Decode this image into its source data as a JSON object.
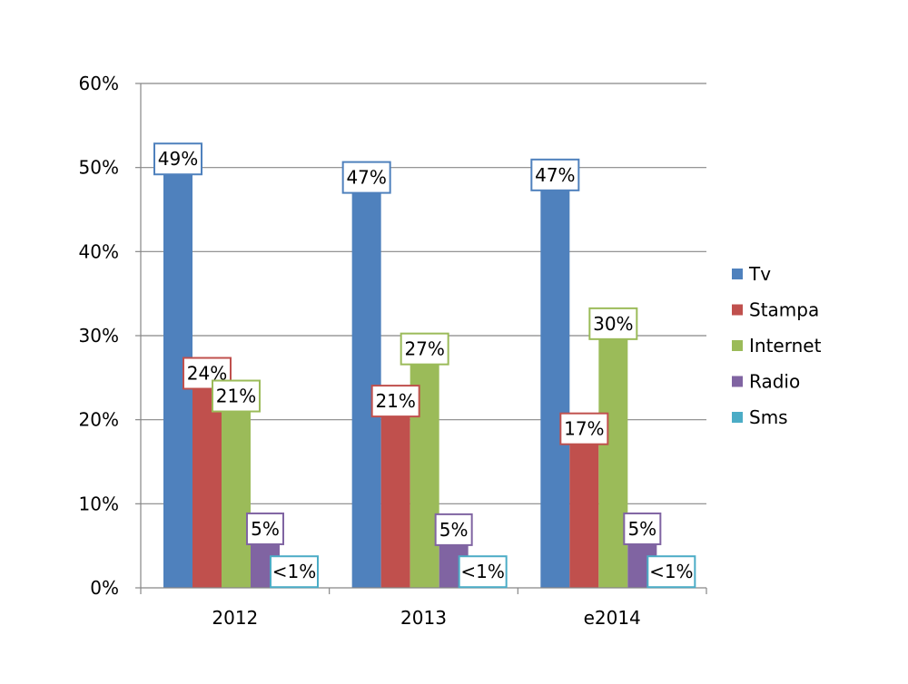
{
  "chart_data": {
    "type": "bar",
    "categories": [
      "2012",
      "2013",
      "e2014"
    ],
    "ylim": [
      0,
      60
    ],
    "ytick_labels": [
      "0%",
      "10%",
      "20%",
      "30%",
      "40%",
      "50%",
      "60%"
    ],
    "grid": true,
    "legend_position": "right",
    "series": [
      {
        "name": "Tv",
        "color": "#4F81BD",
        "values": [
          49.4,
          47.2,
          47.5
        ],
        "labels": [
          "49%",
          "47%",
          "47%"
        ]
      },
      {
        "name": "Stampa",
        "color": "#C0504D",
        "values": [
          23.9,
          20.6,
          17.3
        ],
        "labels": [
          "24%",
          "21%",
          "17%"
        ]
      },
      {
        "name": "Internet",
        "color": "#9BBB59",
        "values": [
          21.2,
          26.8,
          29.8
        ],
        "labels": [
          "21%",
          "27%",
          "30%"
        ]
      },
      {
        "name": "Radio",
        "color": "#8064A2",
        "values": [
          5.4,
          5.3,
          5.4
        ],
        "labels": [
          "5%",
          "5%",
          "5%"
        ]
      },
      {
        "name": "Sms",
        "color": "#4BACC6",
        "values": [
          0.3,
          0.3,
          0.3
        ],
        "labels": [
          "<1%",
          "<1%",
          "<1%"
        ]
      }
    ]
  }
}
